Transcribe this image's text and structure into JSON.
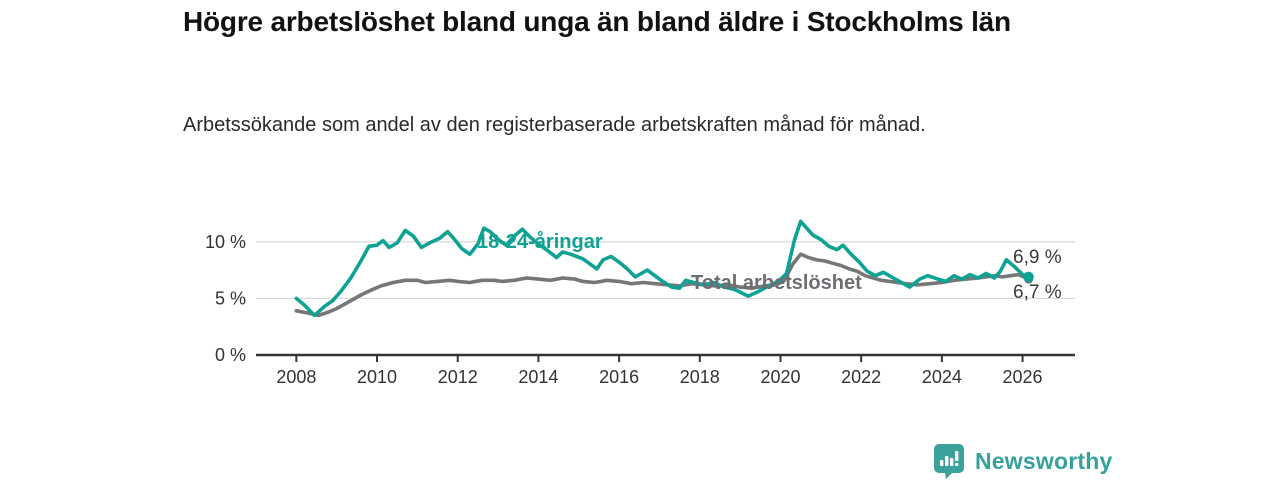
{
  "header": {
    "title": "Högre arbetslöshet bland unga än bland äldre i Stockholms län",
    "subtitle": "Arbetssökande som andel av den registerbaserade arbetskraften månad för månad."
  },
  "chart_data": {
    "type": "line",
    "title": "Högre arbetslöshet bland unga än bland äldre i Stockholms län",
    "subtitle": "Arbetssökande som andel av den registerbaserade arbetskraften månad för månad.",
    "unit": "%",
    "grid": "horizontal-only",
    "legend_position": "inline-labels-on-lines",
    "x_axis": {
      "range": [
        2007.0,
        2027.3
      ],
      "ticks": [
        {
          "value": 2008,
          "label": "2008"
        },
        {
          "value": 2010,
          "label": "2010"
        },
        {
          "value": 2012,
          "label": "2012"
        },
        {
          "value": 2014,
          "label": "2014"
        },
        {
          "value": 2016,
          "label": "2016"
        },
        {
          "value": 2018,
          "label": "2018"
        },
        {
          "value": 2020,
          "label": "2020"
        },
        {
          "value": 2022,
          "label": "2022"
        },
        {
          "value": 2024,
          "label": "2024"
        },
        {
          "value": 2026,
          "label": "2026"
        }
      ]
    },
    "y_axis": {
      "range": [
        0,
        13.6
      ],
      "ticks": [
        {
          "value": 0,
          "label": "0 %"
        },
        {
          "value": 5,
          "label": "5 %"
        },
        {
          "value": 10,
          "label": "10 %"
        }
      ]
    },
    "series": [
      {
        "name": "Total arbetslöshet",
        "color": "#767679",
        "end_label": "6,7 %",
        "end_value": 6.7,
        "points": [
          [
            2008.0,
            3.9
          ],
          [
            2008.3,
            3.7
          ],
          [
            2008.55,
            3.5
          ],
          [
            2008.8,
            3.8
          ],
          [
            2009.0,
            4.1
          ],
          [
            2009.3,
            4.7
          ],
          [
            2009.6,
            5.3
          ],
          [
            2009.9,
            5.8
          ],
          [
            2010.1,
            6.1
          ],
          [
            2010.4,
            6.4
          ],
          [
            2010.7,
            6.6
          ],
          [
            2011.0,
            6.6
          ],
          [
            2011.2,
            6.4
          ],
          [
            2011.5,
            6.5
          ],
          [
            2011.8,
            6.6
          ],
          [
            2012.0,
            6.5
          ],
          [
            2012.3,
            6.4
          ],
          [
            2012.6,
            6.6
          ],
          [
            2012.9,
            6.6
          ],
          [
            2013.1,
            6.5
          ],
          [
            2013.4,
            6.6
          ],
          [
            2013.7,
            6.8
          ],
          [
            2014.0,
            6.7
          ],
          [
            2014.3,
            6.6
          ],
          [
            2014.6,
            6.8
          ],
          [
            2014.9,
            6.7
          ],
          [
            2015.1,
            6.5
          ],
          [
            2015.4,
            6.4
          ],
          [
            2015.7,
            6.6
          ],
          [
            2016.0,
            6.5
          ],
          [
            2016.3,
            6.3
          ],
          [
            2016.6,
            6.4
          ],
          [
            2016.9,
            6.3
          ],
          [
            2017.2,
            6.2
          ],
          [
            2017.5,
            6.1
          ],
          [
            2017.8,
            6.3
          ],
          [
            2018.1,
            6.2
          ],
          [
            2018.4,
            6.1
          ],
          [
            2018.7,
            6.2
          ],
          [
            2019.0,
            6.0
          ],
          [
            2019.3,
            5.9
          ],
          [
            2019.6,
            6.1
          ],
          [
            2019.9,
            6.2
          ],
          [
            2020.1,
            6.6
          ],
          [
            2020.3,
            8.0
          ],
          [
            2020.5,
            8.9
          ],
          [
            2020.7,
            8.6
          ],
          [
            2020.9,
            8.4
          ],
          [
            2021.1,
            8.3
          ],
          [
            2021.3,
            8.1
          ],
          [
            2021.5,
            7.9
          ],
          [
            2021.7,
            7.6
          ],
          [
            2021.9,
            7.4
          ],
          [
            2022.1,
            7.0
          ],
          [
            2022.3,
            6.8
          ],
          [
            2022.5,
            6.6
          ],
          [
            2022.7,
            6.5
          ],
          [
            2022.9,
            6.4
          ],
          [
            2023.1,
            6.3
          ],
          [
            2023.4,
            6.2
          ],
          [
            2023.7,
            6.3
          ],
          [
            2024.0,
            6.4
          ],
          [
            2024.3,
            6.6
          ],
          [
            2024.6,
            6.7
          ],
          [
            2024.9,
            6.8
          ],
          [
            2025.1,
            6.9
          ],
          [
            2025.3,
            7.0
          ],
          [
            2025.5,
            6.9
          ],
          [
            2025.7,
            7.0
          ],
          [
            2025.9,
            7.1
          ],
          [
            2026.15,
            6.7
          ]
        ]
      },
      {
        "name": "18-24-åringar",
        "color": "#0da294",
        "end_label": "6,9 %",
        "end_value": 6.9,
        "points": [
          [
            2008.0,
            5.0
          ],
          [
            2008.17,
            4.5
          ],
          [
            2008.45,
            3.5
          ],
          [
            2008.7,
            4.3
          ],
          [
            2008.9,
            4.8
          ],
          [
            2009.1,
            5.6
          ],
          [
            2009.35,
            6.8
          ],
          [
            2009.6,
            8.3
          ],
          [
            2009.8,
            9.6
          ],
          [
            2010.0,
            9.7
          ],
          [
            2010.15,
            10.1
          ],
          [
            2010.3,
            9.5
          ],
          [
            2010.5,
            9.9
          ],
          [
            2010.7,
            11.0
          ],
          [
            2010.9,
            10.5
          ],
          [
            2011.1,
            9.5
          ],
          [
            2011.3,
            9.9
          ],
          [
            2011.55,
            10.3
          ],
          [
            2011.75,
            10.9
          ],
          [
            2011.9,
            10.3
          ],
          [
            2012.1,
            9.4
          ],
          [
            2012.3,
            8.9
          ],
          [
            2012.5,
            9.8
          ],
          [
            2012.65,
            11.2
          ],
          [
            2012.8,
            10.9
          ],
          [
            2013.0,
            10.2
          ],
          [
            2013.2,
            9.7
          ],
          [
            2013.4,
            10.5
          ],
          [
            2013.6,
            11.1
          ],
          [
            2013.8,
            10.4
          ],
          [
            2014.0,
            9.8
          ],
          [
            2014.2,
            9.3
          ],
          [
            2014.45,
            8.6
          ],
          [
            2014.6,
            9.1
          ],
          [
            2014.8,
            8.9
          ],
          [
            2015.1,
            8.5
          ],
          [
            2015.45,
            7.6
          ],
          [
            2015.6,
            8.4
          ],
          [
            2015.8,
            8.7
          ],
          [
            2016.0,
            8.2
          ],
          [
            2016.2,
            7.6
          ],
          [
            2016.4,
            6.9
          ],
          [
            2016.7,
            7.5
          ],
          [
            2017.0,
            6.7
          ],
          [
            2017.3,
            6.0
          ],
          [
            2017.5,
            5.9
          ],
          [
            2017.65,
            6.6
          ],
          [
            2017.85,
            6.4
          ],
          [
            2018.1,
            6.2
          ],
          [
            2018.35,
            6.4
          ],
          [
            2018.6,
            6.0
          ],
          [
            2018.85,
            5.8
          ],
          [
            2019.2,
            5.2
          ],
          [
            2019.45,
            5.6
          ],
          [
            2019.7,
            6.1
          ],
          [
            2019.95,
            6.5
          ],
          [
            2020.15,
            7.2
          ],
          [
            2020.35,
            10.2
          ],
          [
            2020.5,
            11.8
          ],
          [
            2020.65,
            11.2
          ],
          [
            2020.8,
            10.6
          ],
          [
            2021.0,
            10.2
          ],
          [
            2021.2,
            9.6
          ],
          [
            2021.4,
            9.3
          ],
          [
            2021.55,
            9.7
          ],
          [
            2021.75,
            8.9
          ],
          [
            2021.95,
            8.2
          ],
          [
            2022.15,
            7.4
          ],
          [
            2022.35,
            7.0
          ],
          [
            2022.55,
            7.3
          ],
          [
            2022.75,
            6.9
          ],
          [
            2022.95,
            6.5
          ],
          [
            2023.2,
            6.0
          ],
          [
            2023.45,
            6.7
          ],
          [
            2023.65,
            7.0
          ],
          [
            2023.9,
            6.7
          ],
          [
            2024.1,
            6.5
          ],
          [
            2024.3,
            7.0
          ],
          [
            2024.5,
            6.7
          ],
          [
            2024.7,
            7.1
          ],
          [
            2024.9,
            6.8
          ],
          [
            2025.1,
            7.2
          ],
          [
            2025.3,
            6.8
          ],
          [
            2025.45,
            7.4
          ],
          [
            2025.6,
            8.4
          ],
          [
            2025.8,
            7.8
          ],
          [
            2026.0,
            7.1
          ],
          [
            2026.15,
            6.9
          ]
        ]
      }
    ],
    "colors": {
      "grid_line": "#d9d9d9",
      "axis_line": "#333333",
      "axis_text": "#333333"
    }
  },
  "footer": {
    "brand": "Newsworthy",
    "brand_color": "#35a19b",
    "logo_icon": "bar-chart-speech-bubble-icon"
  }
}
